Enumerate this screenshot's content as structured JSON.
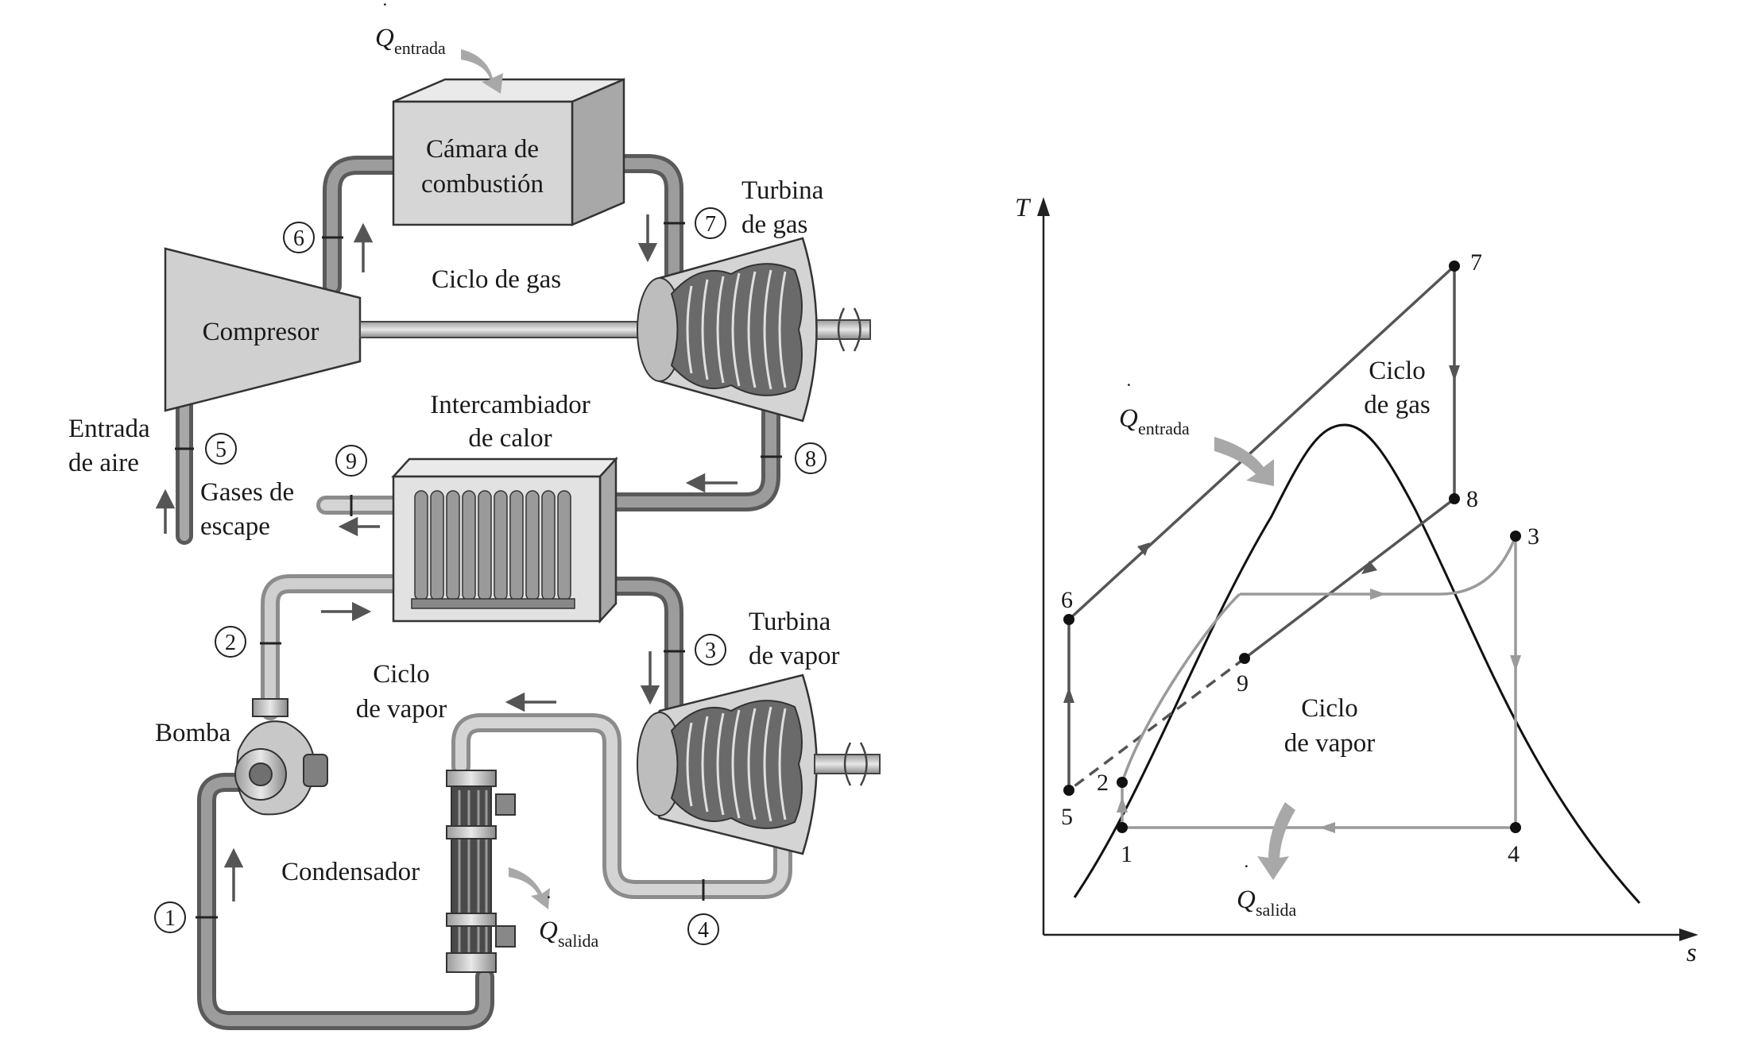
{
  "schematic": {
    "q_in": {
      "symbol": "Q",
      "subscript": "entrada"
    },
    "q_out": {
      "symbol": "Q",
      "subscript": "salida"
    },
    "combustion_chamber": {
      "line1": "Cámara de",
      "line2": "combustión"
    },
    "gas_turbine": {
      "line1": "Turbina",
      "line2": "de gas"
    },
    "gas_cycle": "Ciclo de gas",
    "compressor": "Compresor",
    "heat_exchanger": {
      "line1": "Intercambiador",
      "line2": "de calor"
    },
    "air_inlet": {
      "line1": "Entrada",
      "line2": "de aire"
    },
    "exhaust": {
      "line1": "Gases de",
      "line2": "escape"
    },
    "steam_turbine": {
      "line1": "Turbina",
      "line2": "de vapor"
    },
    "steam_cycle": {
      "line1": "Ciclo",
      "line2": "de vapor"
    },
    "pump": "Bomba",
    "condenser": "Condensador",
    "states": [
      "1",
      "2",
      "3",
      "4",
      "5",
      "6",
      "7",
      "8",
      "9"
    ]
  },
  "ts_diagram": {
    "y_axis": "T",
    "x_axis": "s",
    "gas_cycle": {
      "line1": "Ciclo",
      "line2": "de gas"
    },
    "steam_cycle": {
      "line1": "Ciclo",
      "line2": "de vapor"
    },
    "q_in": {
      "symbol": "Q",
      "subscript": "entrada"
    },
    "q_out": {
      "symbol": "Q",
      "subscript": "salida"
    },
    "points": [
      "1",
      "2",
      "3",
      "4",
      "5",
      "6",
      "7",
      "8",
      "9"
    ]
  },
  "colors": {
    "dark_pipe": "#6e6e6e",
    "light_pipe": "#b4b4b4",
    "steam_line": "#9a9a9a",
    "gas_line": "#555555",
    "equipment_fill": "#d6d6d6"
  }
}
